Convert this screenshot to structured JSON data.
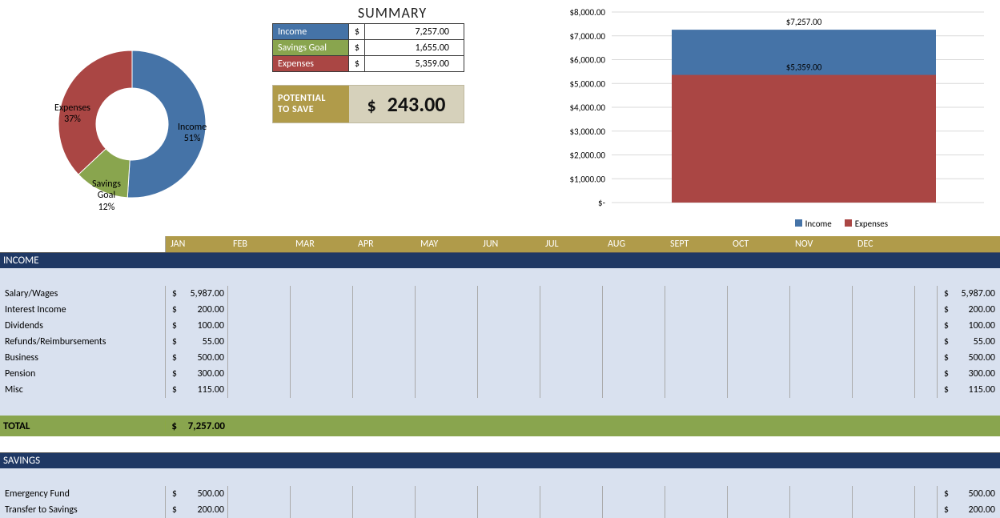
{
  "summary": {
    "title": "SUMMARY",
    "rows": [
      {
        "label": "Income",
        "value": "7,257.00",
        "bg": "#4573a7"
      },
      {
        "label": "Savings Goal",
        "value": "1,655.00",
        "bg": "#89a54e"
      },
      {
        "label": "Expenses",
        "value": "5,359.00",
        "bg": "#aa4644"
      }
    ],
    "potential_label1": "POTENTIAL",
    "potential_label2": "TO SAVE",
    "potential_value": "243.00",
    "pts_bg": "#b09b4a"
  },
  "donut": {
    "type": "donut",
    "slices": [
      {
        "label": "Income",
        "pct": 51,
        "color": "#4573a7"
      },
      {
        "label": "Expenses",
        "pct": 37,
        "color": "#aa4644"
      },
      {
        "label": "Savings Goal",
        "pct": 12,
        "color": "#89a54e"
      }
    ],
    "inner_color": "#ffffff",
    "label_fontsize": 12
  },
  "bar_chart": {
    "type": "bar",
    "ylim": [
      0,
      8000
    ],
    "ytick_step": 1000,
    "ytick_labels": [
      "$-",
      "$1,000.00",
      "$2,000.00",
      "$3,000.00",
      "$4,000.00",
      "$5,000.00",
      "$6,000.00",
      "$7,000.00",
      "$8,000.00"
    ],
    "grid_color": "#d9d9d9",
    "background_color": "#ffffff",
    "stack": [
      {
        "name": "Income",
        "value": 7257,
        "label": "$7,257.00",
        "color": "#4573a7"
      },
      {
        "name": "Expenses",
        "value": 5359,
        "label": "$5,359.00",
        "color": "#aa4644"
      }
    ],
    "legend_items": [
      {
        "text": "Income",
        "color": "#4573a7"
      },
      {
        "text": "Expenses",
        "color": "#aa4644"
      }
    ],
    "label_fontsize": 11
  },
  "months": {
    "bg": "#b09b4a",
    "labels": [
      "JAN",
      "FEB",
      "MAR",
      "APR",
      "MAY",
      "JUN",
      "JUL",
      "AUG",
      "SEPT",
      "OCT",
      "NOV",
      "DEC"
    ]
  },
  "sections": {
    "income": {
      "title": "INCOME",
      "bg": "#1f3864",
      "rows": [
        {
          "name": "Salary/Wages",
          "jan": "5,987.00",
          "total": "5,987.00"
        },
        {
          "name": "Interest Income",
          "jan": "200.00",
          "total": "200.00"
        },
        {
          "name": "Dividends",
          "jan": "100.00",
          "total": "100.00"
        },
        {
          "name": "Refunds/Reimbursements",
          "jan": "55.00",
          "total": "55.00"
        },
        {
          "name": "Business",
          "jan": "500.00",
          "total": "500.00"
        },
        {
          "name": "Pension",
          "jan": "300.00",
          "total": "300.00"
        },
        {
          "name": "Misc",
          "jan": "115.00",
          "total": "115.00"
        }
      ],
      "total_label": "TOTAL",
      "total_value": "7,257.00",
      "total_bg": "#89a54e"
    },
    "savings": {
      "title": "SAVINGS",
      "bg": "#1f3864",
      "rows": [
        {
          "name": "Emergency Fund",
          "jan": "500.00",
          "total": "500.00"
        },
        {
          "name": "Transfer to Savings",
          "jan": "200.00",
          "total": "200.00"
        }
      ]
    }
  }
}
